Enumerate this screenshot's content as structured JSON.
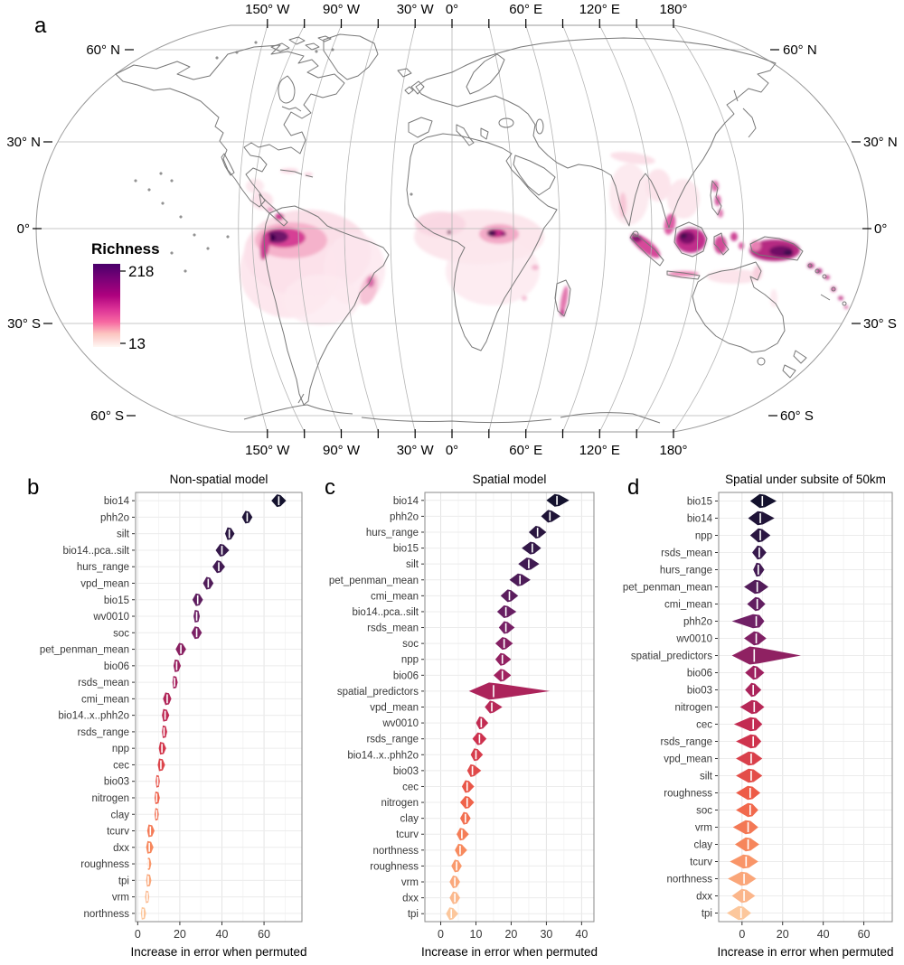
{
  "figure": {
    "panel_a_letter": "a",
    "panel_b_letter": "b",
    "panel_c_letter": "c",
    "panel_d_letter": "d"
  },
  "map": {
    "legend": {
      "title": "Richness",
      "max": "218",
      "min": "13"
    },
    "lon_labels": [
      "150° W",
      "90° W",
      "30° W",
      "0°",
      "60° E",
      "120° E",
      "180°"
    ],
    "lat_labels_left": [
      "60° N",
      "30° N",
      "0°",
      "30° S",
      "60° S"
    ],
    "lat_labels_right": [
      "60° N",
      "30° N",
      "0°",
      "30° S",
      "60° S"
    ],
    "colors": {
      "richness_gradient": [
        "#49006A",
        "#7A0177",
        "#AE017E",
        "#DD3497",
        "#F768A1",
        "#FCC5C0",
        "#FDE0DD",
        "#FFF7F3"
      ],
      "coastline": "#787878",
      "graticule": "#b4b4b4"
    }
  },
  "violin_palette": [
    "#14122E",
    "#3C1A50",
    "#6E2066",
    "#A2215F",
    "#CC2F4E",
    "#EE5D47",
    "#F88E60",
    "#FCC79C"
  ],
  "chart_data": [
    {
      "type": "violin",
      "panel": "b",
      "title": "Non-spatial model",
      "xlabel": "Increase in error when permuted",
      "xticks": [
        0,
        20,
        40,
        60
      ],
      "xminor": [
        10,
        30,
        50,
        70
      ],
      "xlim": [
        -1,
        78
      ],
      "items": [
        {
          "label": "bio14",
          "value": 67,
          "lo": 63.5,
          "hi": 70.5
        },
        {
          "label": "phh2o",
          "value": 52,
          "lo": 49.5,
          "hi": 54.5
        },
        {
          "label": "silt",
          "value": 43.5,
          "lo": 41.5,
          "hi": 46
        },
        {
          "label": "bio14..pca..silt",
          "value": 40,
          "lo": 37,
          "hi": 43.5
        },
        {
          "label": "hurs_range",
          "value": 38.5,
          "lo": 35.5,
          "hi": 41.5
        },
        {
          "label": "vpd_mean",
          "value": 33.5,
          "lo": 31,
          "hi": 36
        },
        {
          "label": "bio15",
          "value": 28.5,
          "lo": 26,
          "hi": 31
        },
        {
          "label": "wv0010",
          "value": 28,
          "lo": 26.5,
          "hi": 29.5
        },
        {
          "label": "soc",
          "value": 28,
          "lo": 25.5,
          "hi": 30.5
        },
        {
          "label": "pet_penman_mean",
          "value": 20.5,
          "lo": 18,
          "hi": 23
        },
        {
          "label": "bio06",
          "value": 18.5,
          "lo": 17,
          "hi": 20.5
        },
        {
          "label": "rsds_mean",
          "value": 17.5,
          "lo": 16.5,
          "hi": 19
        },
        {
          "label": "cmi_mean",
          "value": 14,
          "lo": 12,
          "hi": 16
        },
        {
          "label": "bio14..x..phh2o",
          "value": 13,
          "lo": 11.5,
          "hi": 15
        },
        {
          "label": "rsds_range",
          "value": 12.5,
          "lo": 11.5,
          "hi": 14
        },
        {
          "label": "npp",
          "value": 11.5,
          "lo": 10,
          "hi": 13.5
        },
        {
          "label": "cec",
          "value": 11,
          "lo": 9.5,
          "hi": 13
        },
        {
          "label": "bio03",
          "value": 9.5,
          "lo": 8.5,
          "hi": 10.5
        },
        {
          "label": "nitrogen",
          "value": 9,
          "lo": 8,
          "hi": 10.5
        },
        {
          "label": "clay",
          "value": 9,
          "lo": 8,
          "hi": 10
        },
        {
          "label": "tcurv",
          "value": 6,
          "lo": 4.5,
          "hi": 8
        },
        {
          "label": "dxx",
          "value": 5.5,
          "lo": 4,
          "hi": 7.5
        },
        {
          "label": "roughness",
          "value": 5,
          "lo": 4.5,
          "hi": 6.5
        },
        {
          "label": "tpi",
          "value": 5,
          "lo": 4,
          "hi": 6.5
        },
        {
          "label": "vrm",
          "value": 4.5,
          "lo": 3.5,
          "hi": 5.5
        },
        {
          "label": "northness",
          "value": 2.5,
          "lo": 1.5,
          "hi": 4
        }
      ]
    },
    {
      "type": "violin",
      "panel": "c",
      "title": "Spatial model",
      "xlabel": "Increase in error when permuted",
      "xticks": [
        0,
        10,
        20,
        30,
        40
      ],
      "xminor": [
        5,
        15,
        25,
        35
      ],
      "xlim": [
        -4.5,
        43.5
      ],
      "items": [
        {
          "label": "bio14",
          "value": 33,
          "lo": 30,
          "hi": 36.5
        },
        {
          "label": "phh2o",
          "value": 31,
          "lo": 28.5,
          "hi": 34
        },
        {
          "label": "hurs_range",
          "value": 27.5,
          "lo": 25,
          "hi": 30
        },
        {
          "label": "bio15",
          "value": 26,
          "lo": 23,
          "hi": 28.5
        },
        {
          "label": "silt",
          "value": 25,
          "lo": 22,
          "hi": 28
        },
        {
          "label": "pet_penman_mean",
          "value": 22.5,
          "lo": 19.5,
          "hi": 25.5
        },
        {
          "label": "cmi_mean",
          "value": 19.5,
          "lo": 17,
          "hi": 22
        },
        {
          "label": "bio14..pca..silt",
          "value": 18.5,
          "lo": 16,
          "hi": 21.5
        },
        {
          "label": "rsds_mean",
          "value": 18.5,
          "lo": 16.5,
          "hi": 21
        },
        {
          "label": "soc",
          "value": 18,
          "lo": 15.5,
          "hi": 20.5
        },
        {
          "label": "npp",
          "value": 17.5,
          "lo": 15.5,
          "hi": 20
        },
        {
          "label": "bio06",
          "value": 17.5,
          "lo": 15,
          "hi": 20
        },
        {
          "label": "spatial_predictors",
          "value": 15,
          "lo": 8,
          "hi": 31,
          "h": 9.5
        },
        {
          "label": "vpd_mean",
          "value": 14.5,
          "lo": 12.5,
          "hi": 17.5
        },
        {
          "label": "wv0010",
          "value": 11.5,
          "lo": 10,
          "hi": 13.5
        },
        {
          "label": "rsds_range",
          "value": 11,
          "lo": 9,
          "hi": 13
        },
        {
          "label": "bio14..x..phh2o",
          "value": 10,
          "lo": 8.5,
          "hi": 12
        },
        {
          "label": "bio03",
          "value": 9,
          "lo": 7.5,
          "hi": 11.5
        },
        {
          "label": "cec",
          "value": 7.5,
          "lo": 6,
          "hi": 9.5
        },
        {
          "label": "nitrogen",
          "value": 7.5,
          "lo": 5.5,
          "hi": 9.5
        },
        {
          "label": "clay",
          "value": 7,
          "lo": 5.5,
          "hi": 8.5
        },
        {
          "label": "tcurv",
          "value": 6,
          "lo": 4.5,
          "hi": 8
        },
        {
          "label": "northness",
          "value": 5.5,
          "lo": 4,
          "hi": 7.5
        },
        {
          "label": "roughness",
          "value": 4.5,
          "lo": 3,
          "hi": 6
        },
        {
          "label": "vrm",
          "value": 4,
          "lo": 2.5,
          "hi": 5.5
        },
        {
          "label": "dxx",
          "value": 4,
          "lo": 2.5,
          "hi": 5.5
        },
        {
          "label": "tpi",
          "value": 3,
          "lo": 1.5,
          "hi": 5
        }
      ]
    },
    {
      "type": "violin",
      "panel": "d",
      "title": "Spatial under subsite of 50km",
      "xlabel": "Increase in error when permuted",
      "xticks": [
        0,
        20,
        40,
        60
      ],
      "xminor": [
        10,
        30,
        50,
        70
      ],
      "xlim": [
        -11.5,
        74
      ],
      "items": [
        {
          "label": "bio15",
          "value": 10,
          "lo": 4,
          "hi": 17
        },
        {
          "label": "bio14",
          "value": 9,
          "lo": 3,
          "hi": 16
        },
        {
          "label": "npp",
          "value": 9,
          "lo": 4,
          "hi": 14
        },
        {
          "label": "rsds_mean",
          "value": 8.5,
          "lo": 5,
          "hi": 12
        },
        {
          "label": "hurs_range",
          "value": 8,
          "lo": 5.5,
          "hi": 11
        },
        {
          "label": "pet_penman_mean",
          "value": 7.5,
          "lo": 1,
          "hi": 13
        },
        {
          "label": "cmi_mean",
          "value": 7.5,
          "lo": 2.5,
          "hi": 11.5
        },
        {
          "label": "phh2o",
          "value": 7,
          "lo": -5,
          "hi": 11
        },
        {
          "label": "wv0010",
          "value": 7,
          "lo": 1,
          "hi": 12
        },
        {
          "label": "spatial_predictors",
          "value": 6,
          "lo": -5,
          "hi": 29,
          "h": 10
        },
        {
          "label": "bio06",
          "value": 6.5,
          "lo": 1.5,
          "hi": 11
        },
        {
          "label": "bio03",
          "value": 5.5,
          "lo": 1.5,
          "hi": 9.5
        },
        {
          "label": "nitrogen",
          "value": 6,
          "lo": -1,
          "hi": 11
        },
        {
          "label": "cec",
          "value": 5.5,
          "lo": -4,
          "hi": 10
        },
        {
          "label": "rsds_range",
          "value": 5.5,
          "lo": -3,
          "hi": 9.5
        },
        {
          "label": "vpd_mean",
          "value": 4.5,
          "lo": -3,
          "hi": 10
        },
        {
          "label": "silt",
          "value": 4.5,
          "lo": -3,
          "hi": 10
        },
        {
          "label": "roughness",
          "value": 4,
          "lo": -3,
          "hi": 9
        },
        {
          "label": "soc",
          "value": 4,
          "lo": -3,
          "hi": 8
        },
        {
          "label": "vrm",
          "value": 3,
          "lo": -4.5,
          "hi": 8
        },
        {
          "label": "clay",
          "value": 3,
          "lo": -3.5,
          "hi": 8.5
        },
        {
          "label": "tcurv",
          "value": 2,
          "lo": -6,
          "hi": 8
        },
        {
          "label": "northness",
          "value": 1,
          "lo": -7,
          "hi": 7
        },
        {
          "label": "dxx",
          "value": 1,
          "lo": -5,
          "hi": 6.5
        },
        {
          "label": "tpi",
          "value": -0.5,
          "lo": -7.5,
          "hi": 4.5
        }
      ]
    }
  ]
}
